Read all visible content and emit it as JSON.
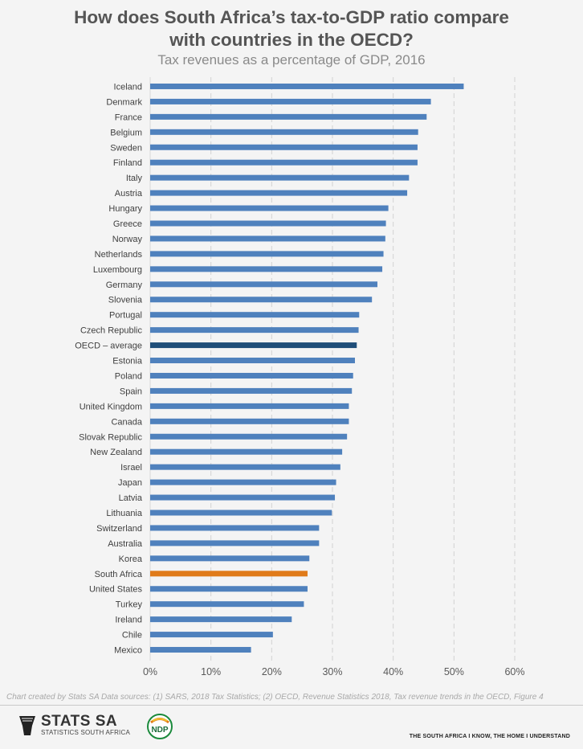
{
  "header": {
    "title_line1": "How does South Africa’s tax-to-GDP ratio compare",
    "title_line2": "with countries in the OECD?",
    "subtitle": "Tax revenues as a percentage of GDP, 2016"
  },
  "chart_data": {
    "type": "bar",
    "orientation": "horizontal",
    "title": "How does South Africa’s tax-to-GDP ratio compare with countries in the OECD?",
    "subtitle": "Tax revenues as a percentage of GDP, 2016",
    "categories": [
      "Iceland",
      "Denmark",
      "France",
      "Belgium",
      "Sweden",
      "Finland",
      "Italy",
      "Austria",
      "Hungary",
      "Greece",
      "Norway",
      "Netherlands",
      "Luxembourg",
      "Germany",
      "Slovenia",
      "Portugal",
      "Czech Republic",
      "OECD – average",
      "Estonia",
      "Poland",
      "Spain",
      "United Kingdom",
      "Canada",
      "Slovak Republic",
      "New Zealand",
      "Israel",
      "Japan",
      "Latvia",
      "Lithuania",
      "Switzerland",
      "Australia",
      "Korea",
      "South Africa",
      "United States",
      "Turkey",
      "Ireland",
      "Chile",
      "Mexico"
    ],
    "values": [
      51.6,
      46.2,
      45.5,
      44.1,
      44.0,
      44.0,
      42.6,
      42.3,
      39.2,
      38.8,
      38.7,
      38.4,
      38.2,
      37.4,
      36.5,
      34.4,
      34.3,
      34.0,
      33.7,
      33.4,
      33.2,
      32.7,
      32.7,
      32.4,
      31.6,
      31.3,
      30.6,
      30.4,
      29.9,
      27.8,
      27.8,
      26.2,
      25.9,
      25.9,
      25.3,
      23.3,
      20.2,
      16.6
    ],
    "highlight": {
      "OECD – average": "#1f4e79",
      "South Africa": "#e07b1a"
    },
    "bar_color": "#4f81bd",
    "xlim": [
      0,
      60
    ],
    "xticks": [
      "0%",
      "10%",
      "20%",
      "30%",
      "40%",
      "50%",
      "60%"
    ],
    "grid": "vertical dashed"
  },
  "footer": {
    "source": "Chart created by Stats SA  Data sources: (1) SARS, 2018 Tax Statistics; (2) OECD, Revenue Statistics 2018, Tax revenue trends in the OECD, Figure 4",
    "logo_name": "STATS SA",
    "logo_sub": "STATISTICS SOUTH AFRICA",
    "ndp_label": "NDP",
    "tagline": "THE SOUTH AFRICA I KNOW, THE HOME I UNDERSTAND"
  }
}
